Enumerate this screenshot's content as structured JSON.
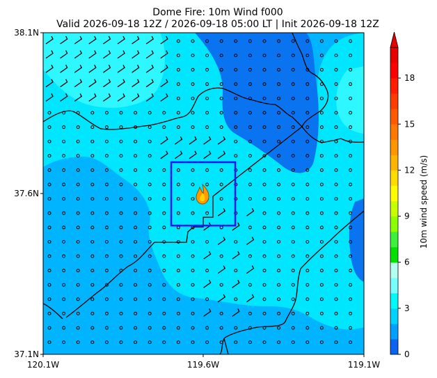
{
  "chart_data": {
    "type": "heatmap",
    "title_line1": "Dome Fire: 10m Wind f000",
    "title_line2": "Valid 2026-09-18 12Z / 2026-09-18 05:00 LT | Init 2026-09-18 12Z",
    "x_ticks": [
      "120.1W",
      "119.6W",
      "119.1W"
    ],
    "y_ticks": [
      "38.1N",
      "37.6N",
      "37.1N"
    ],
    "xlim": [
      -120.1,
      -119.1
    ],
    "ylim": [
      37.1,
      38.1
    ],
    "colorbar": {
      "label": "10m wind speed (m/s)",
      "ticks": [
        "0",
        "3",
        "6",
        "9",
        "12",
        "15",
        "18"
      ],
      "range": [
        0,
        20
      ],
      "extend": "max",
      "colors": [
        "#0a64f0",
        "#00a0ff",
        "#00d2ff",
        "#00fafa",
        "#78ffff",
        "#b4fff0",
        "#00e100",
        "#3cf03c",
        "#8cff00",
        "#c8ff00",
        "#ffff00",
        "#ffdc00",
        "#ffb400",
        "#ff9600",
        "#ff7800",
        "#ff5a00",
        "#ff3c00",
        "#ff1e00",
        "#ff0000",
        "#e60000"
      ]
    },
    "fire_location": {
      "lon": -119.585,
      "lat": 37.595
    },
    "focus_box": {
      "lon": [
        -119.7,
        -119.5
      ],
      "lat": [
        37.5,
        37.7
      ]
    }
  }
}
